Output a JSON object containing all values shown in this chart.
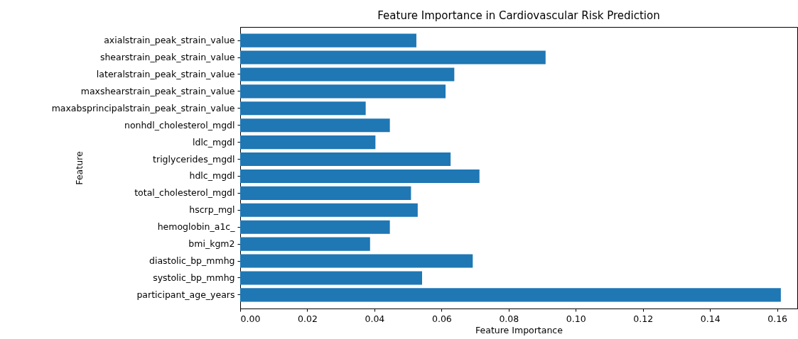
{
  "chart_data": {
    "type": "bar",
    "orientation": "horizontal",
    "title": "Feature Importance in Cardiovascular Risk Prediction",
    "xlabel": "Feature Importance",
    "ylabel": "Feature",
    "categories": [
      "axialstrain_peak_strain_value",
      "shearstrain_peak_strain_value",
      "lateralstrain_peak_strain_value",
      "maxshearstrain_peak_strain_value",
      "maxabsprincipalstrain_peak_strain_value",
      "nonhdl_cholesterol_mgdl",
      "ldlc_mgdl",
      "triglycerides_mgdl",
      "hdlc_mgdl",
      "total_cholesterol_mgdl",
      "hscrp_mgl",
      "hemoglobin_a1c_",
      "bmi_kgm2",
      "diastolic_bp_mmhg",
      "systolic_bp_mmhg",
      "participant_age_years"
    ],
    "values": [
      0.0525,
      0.091,
      0.0638,
      0.0612,
      0.0374,
      0.0446,
      0.0403,
      0.0627,
      0.0713,
      0.0509,
      0.0529,
      0.0446,
      0.0387,
      0.0693,
      0.0542,
      0.1611
    ],
    "color": "#1f77b4",
    "xlim": [
      0,
      0.166
    ],
    "xticks": [
      {
        "value": 0,
        "label": "0.00"
      },
      {
        "value": 0.02,
        "label": "0.02"
      },
      {
        "value": 0.04,
        "label": "0.04"
      },
      {
        "value": 0.06,
        "label": "0.06"
      },
      {
        "value": 0.08,
        "label": "0.08"
      },
      {
        "value": 0.1,
        "label": "0.10"
      },
      {
        "value": 0.12,
        "label": "0.12"
      },
      {
        "value": 0.14,
        "label": "0.14"
      },
      {
        "value": 0.16,
        "label": "0.16"
      }
    ],
    "grid": false
  }
}
